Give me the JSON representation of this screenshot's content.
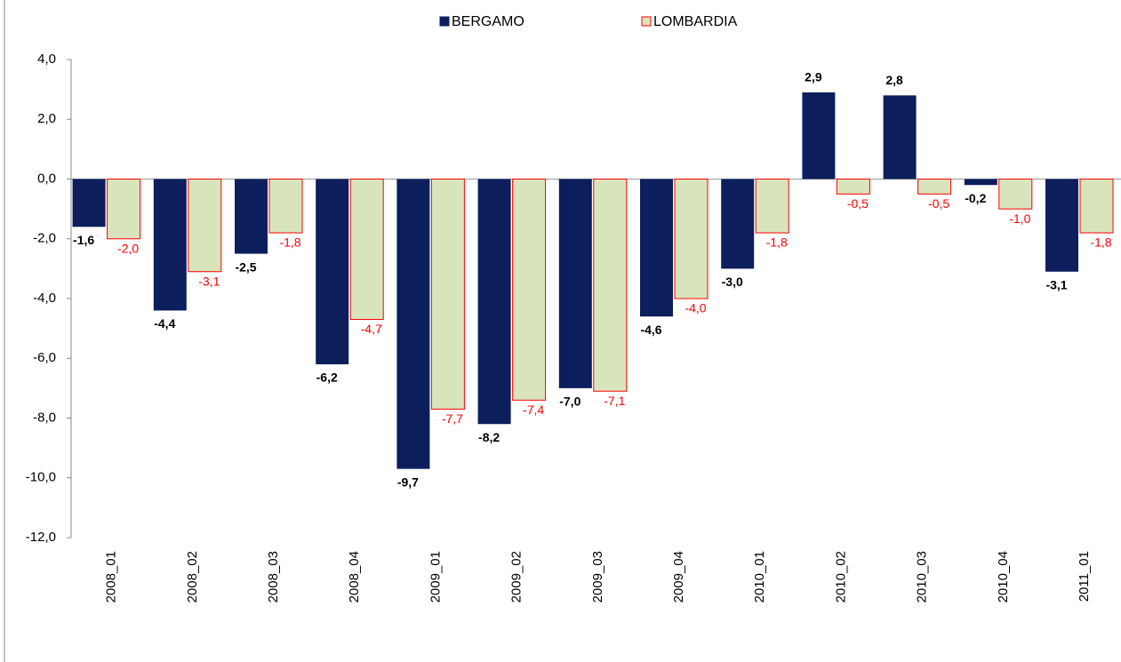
{
  "chart_data": {
    "type": "bar",
    "categories": [
      "2008_01",
      "2008_02",
      "2008_03",
      "2008_04",
      "2009_01",
      "2009_02",
      "2009_03",
      "2009_04",
      "2010_01",
      "2010_02",
      "2010_03",
      "2010_04",
      "2011_01"
    ],
    "series": [
      {
        "name": "BERGAMO",
        "color": "#0c1f5c",
        "values": [
          -1.6,
          -4.4,
          -2.5,
          -6.2,
          -9.7,
          -8.2,
          -7.0,
          -4.6,
          -3.0,
          2.9,
          2.8,
          -0.2,
          -3.1
        ],
        "value_labels": [
          "-1,6",
          "-4,4",
          "-2,5",
          "-6,2",
          "-9,7",
          "-8,2",
          "-7,0",
          "-4,6",
          "-3,0",
          "2,9",
          "2,8",
          "-0,2",
          "-3,1"
        ]
      },
      {
        "name": "LOMBARDIA",
        "color": "#d8e4bc",
        "edge_color": "#ff0000",
        "values": [
          -2.0,
          -3.1,
          -1.8,
          -4.7,
          -7.7,
          -7.4,
          -7.1,
          -4.0,
          -1.8,
          -0.5,
          -0.5,
          -1.0,
          -1.8
        ],
        "value_labels": [
          "-2,0",
          "-3,1",
          "-1,8",
          "-4,7",
          "-7,7",
          "-7,4",
          "-7,1",
          "-4,0",
          "-1,8",
          "-0,5",
          "-0,5",
          "-1,0",
          "-1,8"
        ]
      }
    ],
    "ylim": [
      -12,
      4
    ],
    "yticks": [
      {
        "value": -12,
        "label": "-12,0"
      },
      {
        "value": -10,
        "label": "-10,0"
      },
      {
        "value": -8,
        "label": "-8,0"
      },
      {
        "value": -6,
        "label": "-6,0"
      },
      {
        "value": -4,
        "label": "-4,0"
      },
      {
        "value": -2,
        "label": "-2,0"
      },
      {
        "value": 0,
        "label": "0,0"
      },
      {
        "value": 2,
        "label": "2,0"
      },
      {
        "value": 4,
        "label": "4,0"
      }
    ],
    "grid": false,
    "legend": "top"
  }
}
